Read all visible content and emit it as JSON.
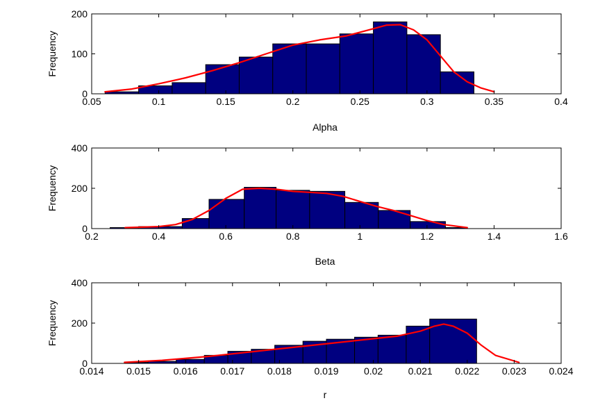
{
  "chart_data": [
    {
      "type": "bar",
      "xlabel": "Alpha",
      "ylabel": "Frequency",
      "xlim": [
        0.05,
        0.4
      ],
      "ylim": [
        0,
        200
      ],
      "xticks": [
        0.05,
        0.1,
        0.15,
        0.2,
        0.25,
        0.3,
        0.35,
        0.4
      ],
      "xtick_labels": [
        "0.05",
        "0.1",
        "0.15",
        "0.2",
        "0.25",
        "0.3",
        "0.35",
        "0.4"
      ],
      "yticks": [
        0,
        100,
        200
      ],
      "ytick_labels": [
        "0",
        "100",
        "200"
      ],
      "grid": false,
      "bins": [
        {
          "x0": 0.035,
          "x1": 0.06,
          "count": 0
        },
        {
          "x0": 0.06,
          "x1": 0.085,
          "count": 5
        },
        {
          "x0": 0.085,
          "x1": 0.11,
          "count": 20
        },
        {
          "x0": 0.11,
          "x1": 0.135,
          "count": 28
        },
        {
          "x0": 0.135,
          "x1": 0.16,
          "count": 73
        },
        {
          "x0": 0.16,
          "x1": 0.185,
          "count": 92
        },
        {
          "x0": 0.185,
          "x1": 0.21,
          "count": 125
        },
        {
          "x0": 0.21,
          "x1": 0.235,
          "count": 125
        },
        {
          "x0": 0.235,
          "x1": 0.26,
          "count": 150
        },
        {
          "x0": 0.26,
          "x1": 0.285,
          "count": 180
        },
        {
          "x0": 0.285,
          "x1": 0.31,
          "count": 148
        },
        {
          "x0": 0.31,
          "x1": 0.335,
          "count": 55
        }
      ],
      "curve": {
        "x": [
          0.06,
          0.08,
          0.1,
          0.12,
          0.14,
          0.16,
          0.18,
          0.2,
          0.22,
          0.24,
          0.26,
          0.27,
          0.28,
          0.29,
          0.3,
          0.31,
          0.32,
          0.33,
          0.34,
          0.35
        ],
        "y": [
          5,
          12,
          25,
          40,
          58,
          78,
          100,
          122,
          135,
          145,
          163,
          172,
          173,
          160,
          135,
          95,
          55,
          30,
          15,
          5
        ]
      },
      "bar_color": "#000080",
      "curve_color": "#ff0000"
    },
    {
      "type": "bar",
      "xlabel": "Beta",
      "ylabel": "Frequency",
      "xlim": [
        0.2,
        1.6
      ],
      "ylim": [
        0,
        400
      ],
      "xticks": [
        0.2,
        0.4,
        0.6,
        0.8,
        1.0,
        1.2,
        1.4,
        1.6
      ],
      "xtick_labels": [
        "0.2",
        "0.4",
        "0.6",
        "0.8",
        "1",
        "1.2",
        "1.4",
        "1.6"
      ],
      "yticks": [
        0,
        200,
        400
      ],
      "ytick_labels": [
        "0",
        "200",
        "400"
      ],
      "grid": false,
      "bins": [
        {
          "x0": 0.255,
          "x1": 0.34,
          "count": 5
        },
        {
          "x0": 0.34,
          "x1": 0.47,
          "count": 10
        },
        {
          "x0": 0.47,
          "x1": 0.55,
          "count": 50
        },
        {
          "x0": 0.55,
          "x1": 0.655,
          "count": 145
        },
        {
          "x0": 0.655,
          "x1": 0.75,
          "count": 205
        },
        {
          "x0": 0.75,
          "x1": 0.85,
          "count": 190
        },
        {
          "x0": 0.85,
          "x1": 0.955,
          "count": 185
        },
        {
          "x0": 0.955,
          "x1": 1.055,
          "count": 130
        },
        {
          "x0": 1.055,
          "x1": 1.15,
          "count": 90
        },
        {
          "x0": 1.15,
          "x1": 1.255,
          "count": 35
        },
        {
          "x0": 1.255,
          "x1": 1.32,
          "count": 5
        }
      ],
      "curve": {
        "x": [
          0.3,
          0.4,
          0.45,
          0.5,
          0.55,
          0.6,
          0.65,
          0.7,
          0.75,
          0.8,
          0.85,
          0.9,
          0.95,
          1.0,
          1.05,
          1.1,
          1.15,
          1.2,
          1.25,
          1.32
        ],
        "y": [
          5,
          10,
          20,
          45,
          90,
          150,
          195,
          200,
          195,
          185,
          180,
          175,
          160,
          135,
          110,
          90,
          65,
          40,
          20,
          5
        ]
      },
      "bar_color": "#000080",
      "curve_color": "#ff0000"
    },
    {
      "type": "bar",
      "xlabel": "r",
      "ylabel": "Frequency",
      "xlim": [
        0.014,
        0.024
      ],
      "ylim": [
        0,
        400
      ],
      "xticks": [
        0.014,
        0.015,
        0.016,
        0.017,
        0.018,
        0.019,
        0.02,
        0.021,
        0.022,
        0.023,
        0.024
      ],
      "xtick_labels": [
        "0.014",
        "0.015",
        "0.016",
        "0.017",
        "0.018",
        "0.019",
        "0.02",
        "0.021",
        "0.022",
        "0.023",
        "0.024"
      ],
      "yticks": [
        0,
        200,
        400
      ],
      "ytick_labels": [
        "0",
        "200",
        "400"
      ],
      "grid": false,
      "bins": [
        {
          "x0": 0.0147,
          "x1": 0.0152,
          "count": 5
        },
        {
          "x0": 0.0152,
          "x1": 0.0158,
          "count": 10
        },
        {
          "x0": 0.0158,
          "x1": 0.0164,
          "count": 20
        },
        {
          "x0": 0.0164,
          "x1": 0.0169,
          "count": 40
        },
        {
          "x0": 0.0169,
          "x1": 0.0174,
          "count": 60
        },
        {
          "x0": 0.0174,
          "x1": 0.0179,
          "count": 70
        },
        {
          "x0": 0.0179,
          "x1": 0.0185,
          "count": 90
        },
        {
          "x0": 0.0185,
          "x1": 0.019,
          "count": 110
        },
        {
          "x0": 0.019,
          "x1": 0.0196,
          "count": 120
        },
        {
          "x0": 0.0196,
          "x1": 0.0201,
          "count": 130
        },
        {
          "x0": 0.0201,
          "x1": 0.0207,
          "count": 140
        },
        {
          "x0": 0.0207,
          "x1": 0.0212,
          "count": 185
        },
        {
          "x0": 0.0212,
          "x1": 0.0222,
          "count": 220
        }
      ],
      "curve": {
        "x": [
          0.0147,
          0.0155,
          0.0165,
          0.0175,
          0.0185,
          0.0195,
          0.0205,
          0.021,
          0.0213,
          0.0215,
          0.0217,
          0.022,
          0.0223,
          0.0226,
          0.0231
        ],
        "y": [
          5,
          15,
          35,
          60,
          85,
          110,
          135,
          160,
          185,
          195,
          185,
          150,
          90,
          40,
          5
        ]
      },
      "bar_color": "#000080",
      "curve_color": "#ff0000"
    }
  ]
}
